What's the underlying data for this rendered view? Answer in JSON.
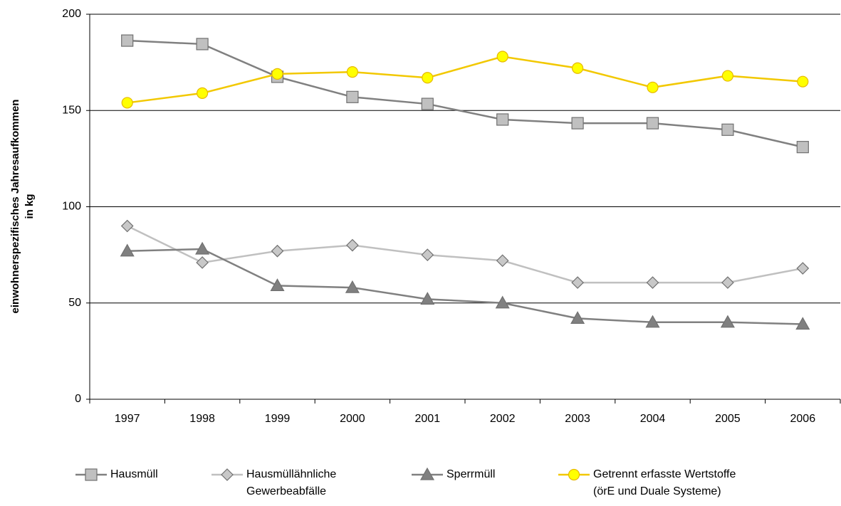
{
  "chart_data": {
    "type": "line",
    "ylabel": [
      "einwohnerspezifisches Jahresaufkommen",
      "in kg"
    ],
    "categories": [
      "1997",
      "1998",
      "1999",
      "2000",
      "2001",
      "2002",
      "2003",
      "2004",
      "2005",
      "2006"
    ],
    "series": [
      {
        "name": "Hausmüll",
        "color": "#808080",
        "marker": "square",
        "marker_fill": "#c0c0c0",
        "values": [
          186.3,
          184.5,
          167.5,
          157,
          153.4,
          145.3,
          143.4,
          143.4,
          140,
          131
        ]
      },
      {
        "name": "Hausmüllähnliche\nGewerbeabfälle",
        "color": "#c0c0c0",
        "marker": "diamond",
        "marker_fill": "#c8c8c8",
        "values": [
          90,
          71,
          77,
          80,
          75,
          72,
          60.6,
          60.6,
          60.6,
          68
        ]
      },
      {
        "name": "Sperrmüll",
        "color": "#808080",
        "marker": "triangle",
        "marker_fill": "#808080",
        "values": [
          77,
          78,
          59,
          58,
          52,
          50,
          42,
          40,
          40,
          39
        ]
      },
      {
        "name": "Getrennt erfasste Wertstoffe\n(örE und Duale Systeme)",
        "color": "#f2c800",
        "marker": "circle",
        "marker_fill": "#ffff00",
        "values": [
          154,
          159,
          169,
          170,
          167,
          178,
          172,
          162,
          168,
          165
        ]
      }
    ],
    "ylim": [
      0,
      200
    ],
    "yticks": [
      0,
      50,
      100,
      150,
      200
    ],
    "grid": true,
    "legend": "bottom"
  }
}
